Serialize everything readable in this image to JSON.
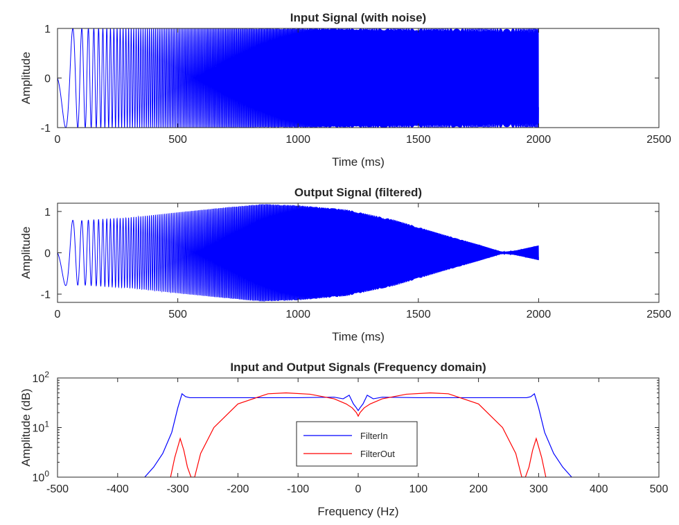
{
  "colors": {
    "filter_in": "#0000ff",
    "filter_out": "#ff0000",
    "axes": "#262626"
  },
  "chart_data": [
    {
      "type": "line",
      "title": "Input Signal (with noise)",
      "xlabel": "Time (ms)",
      "ylabel": "Amplitude",
      "xlim": [
        0,
        2500
      ],
      "ylim": [
        -1,
        1
      ],
      "x_ticks": [
        "0",
        "500",
        "1000",
        "1500",
        "2000",
        "2500"
      ],
      "y_ticks": [
        "-1",
        "0",
        "1"
      ],
      "grid": false,
      "series": [
        {
          "color": "#0000ff",
          "x_range": [
            0,
            2000
          ],
          "description_samples": {
            "x": [
              0,
              40,
              80,
              120,
              500,
              1000,
              1500,
              2000
            ],
            "envelope": [
              1,
              1,
              1,
              1,
              1,
              1,
              1,
              1
            ]
          }
        }
      ]
    },
    {
      "type": "line",
      "title": "Output Signal (filtered)",
      "xlabel": "Time (ms)",
      "ylabel": "Amplitude",
      "xlim": [
        0,
        2500
      ],
      "ylim": [
        -1.2,
        1.2
      ],
      "x_ticks": [
        "0",
        "500",
        "1000",
        "1500",
        "2000",
        "2500"
      ],
      "y_ticks": [
        "-1",
        "0",
        "1"
      ],
      "grid": false,
      "series": [
        {
          "color": "#0000ff",
          "envelope_x": [
            0,
            100,
            300,
            500,
            700,
            850,
            1000,
            1200,
            1400,
            1600,
            1750,
            1850,
            1900,
            2000
          ],
          "envelope_y": [
            0.8,
            0.78,
            0.85,
            0.98,
            1.1,
            1.18,
            1.15,
            1.05,
            0.8,
            0.45,
            0.2,
            0.02,
            0.05,
            0.18
          ]
        }
      ]
    },
    {
      "type": "line",
      "title": "Input and Output Signals (Frequency domain)",
      "xlabel": "Frequency (Hz)",
      "ylabel": "Amplitude (dB)",
      "xlim": [
        -500,
        500
      ],
      "ylim": [
        1,
        100
      ],
      "yscale": "log",
      "x_ticks": [
        "-500",
        "-400",
        "-300",
        "-200",
        "-100",
        "0",
        "100",
        "200",
        "300",
        "400",
        "500"
      ],
      "y_ticks": [
        {
          "base": "10",
          "exp": "0"
        },
        {
          "base": "10",
          "exp": "1"
        },
        {
          "base": "10",
          "exp": "2"
        }
      ],
      "grid": false,
      "legend": {
        "position": "center",
        "entries": [
          "FilterIn",
          "FilterOut"
        ]
      },
      "series": [
        {
          "name": "FilterIn",
          "color": "#0000ff",
          "x": [
            -355,
            -340,
            -325,
            -310,
            -300,
            -293,
            -287,
            -280,
            -270,
            -200,
            -100,
            -40,
            -25,
            -15,
            -8,
            -3,
            0,
            3,
            8,
            15,
            25,
            40,
            100,
            200,
            270,
            280,
            287,
            293,
            300,
            310,
            325,
            340,
            355
          ],
          "y": [
            1,
            1.6,
            3,
            8,
            25,
            48,
            42,
            40,
            40,
            40,
            40,
            41,
            38,
            45,
            30,
            25,
            22,
            25,
            30,
            45,
            38,
            41,
            40,
            40,
            40,
            40,
            42,
            48,
            25,
            8,
            3,
            1.6,
            1
          ]
        },
        {
          "name": "FilterOut",
          "color": "#ff0000",
          "x": [
            -312,
            -305,
            -296,
            -290,
            -284,
            -278,
            -272,
            -262,
            -240,
            -200,
            -150,
            -120,
            -80,
            -40,
            -20,
            -10,
            -3,
            0,
            3,
            10,
            20,
            40,
            80,
            120,
            150,
            200,
            240,
            262,
            272,
            278,
            284,
            290,
            296,
            305,
            312
          ],
          "y": [
            1,
            2.5,
            6,
            3.5,
            1.6,
            1,
            1,
            3,
            10,
            30,
            48,
            50,
            47,
            38,
            30,
            25,
            20,
            17,
            20,
            25,
            30,
            38,
            47,
            50,
            48,
            30,
            10,
            3,
            1,
            1,
            1.6,
            3.5,
            6,
            2.5,
            1
          ]
        }
      ]
    }
  ]
}
